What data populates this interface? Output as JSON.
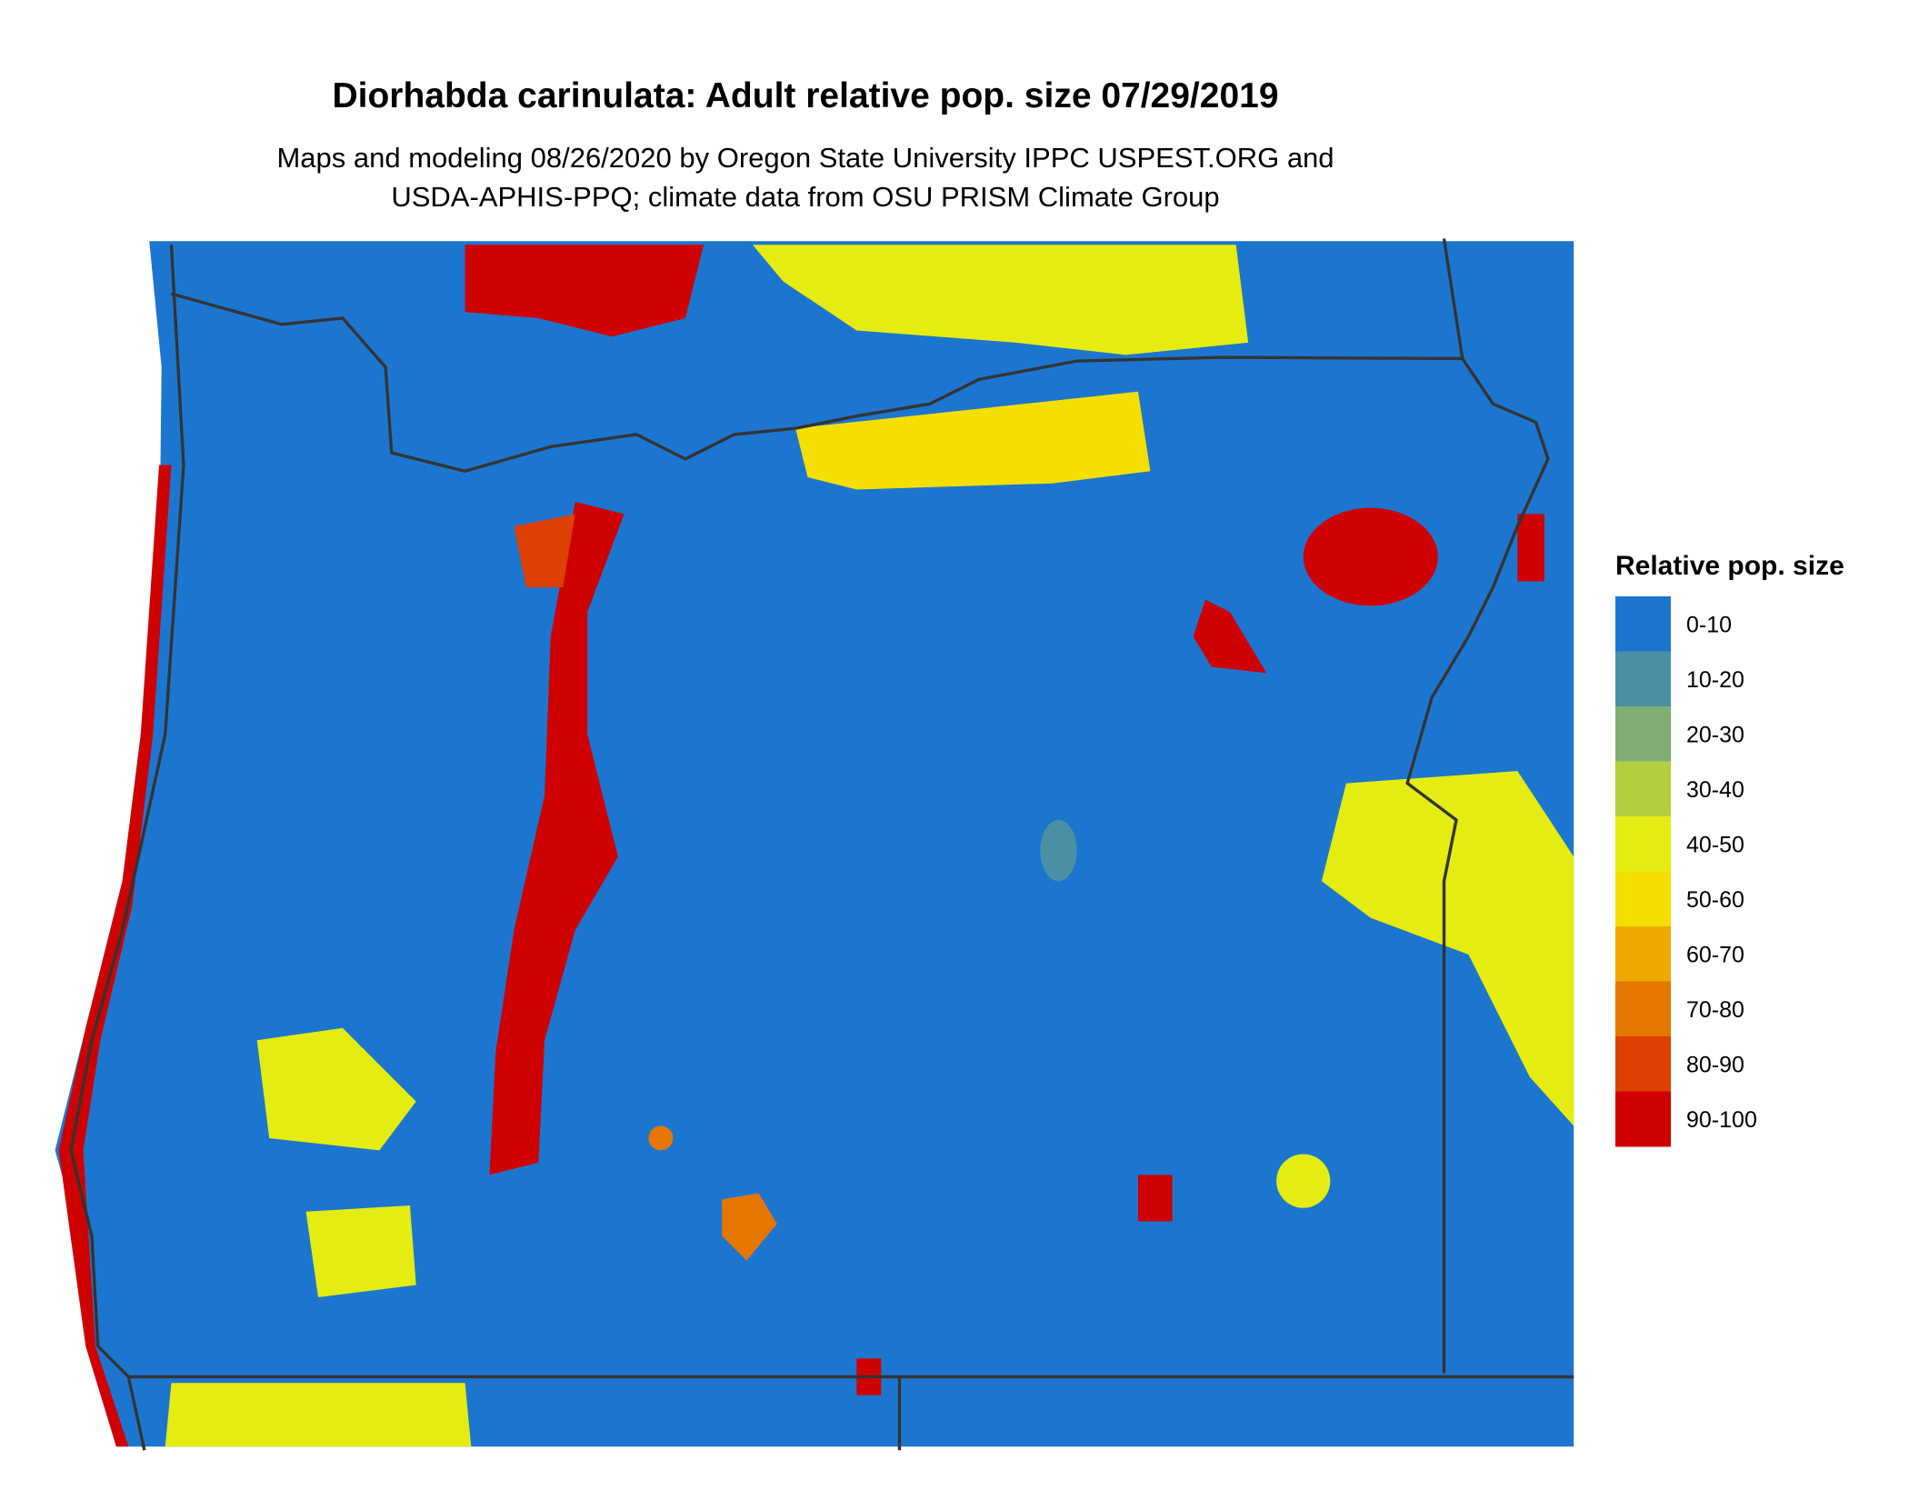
{
  "title": "Diorhabda carinulata: Adult relative pop. size 07/29/2019",
  "subtitle": [
    "Maps and modeling 08/26/2020 by Oregon State University IPPC USPEST.ORG and",
    "USDA-APHIS-PPQ; climate data from OSU PRISM Climate Group"
  ],
  "legend": {
    "title": "Relative pop. size",
    "items": [
      {
        "label": "0-10",
        "color": "#1c76cf"
      },
      {
        "label": "10-20",
        "color": "#4a8fa3"
      },
      {
        "label": "20-30",
        "color": "#80ad72"
      },
      {
        "label": "30-40",
        "color": "#b4cf3e"
      },
      {
        "label": "40-50",
        "color": "#e4ec12"
      },
      {
        "label": "50-60",
        "color": "#f4df00"
      },
      {
        "label": "60-70",
        "color": "#eea800"
      },
      {
        "label": "70-80",
        "color": "#e57700"
      },
      {
        "label": "80-90",
        "color": "#dd4000"
      },
      {
        "label": "90-100",
        "color": "#cf0000"
      }
    ]
  }
}
